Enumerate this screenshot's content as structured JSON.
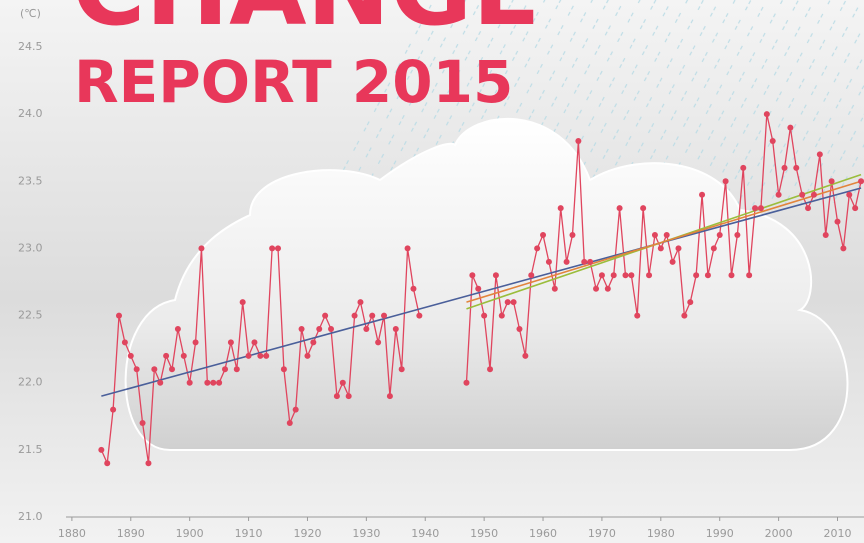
{
  "chart_data": {
    "type": "line",
    "title": "CHANGE",
    "subtitle": "REPORT 2015",
    "y_label": "(℃)",
    "xlim": [
      1879,
      2014.5
    ],
    "ylim": [
      21.0,
      24.5
    ],
    "xticks": [
      1880,
      1890,
      1900,
      1910,
      1920,
      1930,
      1940,
      1950,
      1960,
      1970,
      1980,
      1990,
      2000,
      2010
    ],
    "yticks": [
      {
        "value": 21.0,
        "label": "21.0"
      },
      {
        "value": 21.5,
        "label": "21.5"
      },
      {
        "value": 22.0,
        "label": "22.0"
      },
      {
        "value": 22.5,
        "label": "22.5"
      },
      {
        "value": 23.0,
        "label": "23.0"
      },
      {
        "value": 23.5,
        "label": "23.5"
      },
      {
        "value": 24.0,
        "label": "24.0"
      },
      {
        "value": 24.5,
        "label": "24.5"
      }
    ],
    "x": [
      1885,
      1886,
      1887,
      1888,
      1889,
      1890,
      1891,
      1892,
      1893,
      1894,
      1895,
      1896,
      1897,
      1898,
      1899,
      1900,
      1901,
      1902,
      1903,
      1904,
      1905,
      1906,
      1907,
      1908,
      1909,
      1910,
      1911,
      1912,
      1913,
      1914,
      1915,
      1916,
      1917,
      1918,
      1919,
      1920,
      1921,
      1922,
      1923,
      1924,
      1925,
      1926,
      1927,
      1928,
      1929,
      1930,
      1931,
      1932,
      1933,
      1934,
      1935,
      1936,
      1937,
      1938,
      1939,
      1940,
      1941,
      1942,
      1943,
      1944,
      1945,
      1946,
      1947,
      1948,
      1949,
      1950,
      1951,
      1952,
      1953,
      1954,
      1955,
      1956,
      1957,
      1958,
      1959,
      1960,
      1961,
      1962,
      1963,
      1964,
      1965,
      1966,
      1967,
      1968,
      1969,
      1970,
      1971,
      1972,
      1973,
      1974,
      1975,
      1976,
      1977,
      1978,
      1979,
      1980,
      1981,
      1982,
      1983,
      1984,
      1985,
      1986,
      1987,
      1988,
      1989,
      1990,
      1991,
      1992,
      1993,
      1994,
      1995,
      1996,
      1997,
      1998,
      1999,
      2000,
      2001,
      2002,
      2003,
      2004,
      2005,
      2006,
      2007,
      2008,
      2009,
      2010,
      2011,
      2012,
      2013,
      2014
    ],
    "series": [
      {
        "color": "#e0455e",
        "values": [
          21.5,
          21.4,
          21.8,
          22.5,
          22.3,
          22.2,
          22.1,
          21.7,
          21.4,
          22.1,
          22.0,
          22.2,
          22.1,
          22.4,
          22.2,
          22.0,
          22.3,
          23.0,
          22.0,
          22.0,
          22.0,
          22.1,
          22.3,
          22.1,
          22.6,
          22.2,
          22.3,
          22.2,
          22.2,
          23.0,
          23.0,
          22.1,
          21.7,
          21.8,
          22.4,
          22.2,
          22.3,
          22.4,
          22.5,
          22.4,
          21.9,
          22.0,
          21.9,
          22.5,
          22.6,
          22.4,
          22.5,
          22.3,
          22.5,
          21.9,
          22.4,
          22.1,
          23.0,
          22.7,
          22.5,
          null,
          null,
          null,
          null,
          null,
          null,
          null,
          22.0,
          22.8,
          22.7,
          22.5,
          22.1,
          22.8,
          22.5,
          22.6,
          22.6,
          22.4,
          22.2,
          22.8,
          23.0,
          23.1,
          22.9,
          22.7,
          23.3,
          22.9,
          23.1,
          23.8,
          22.9,
          22.9,
          22.7,
          22.8,
          22.7,
          22.8,
          23.3,
          22.8,
          22.8,
          22.5,
          23.3,
          22.8,
          23.1,
          23.0,
          23.1,
          22.9,
          23.0,
          22.5,
          22.6,
          22.8,
          23.4,
          22.8,
          23.0,
          23.1,
          23.5,
          22.8,
          23.1,
          23.6,
          22.8,
          23.3,
          23.3,
          24.0,
          23.8,
          23.4,
          23.6,
          23.9,
          23.6,
          23.4,
          23.3,
          23.4,
          23.7,
          23.1,
          23.5,
          23.2,
          23.0,
          23.4,
          23.3,
          23.5
        ]
      }
    ],
    "trends": [
      {
        "color": "#4a5f9a",
        "x": [
          1885,
          2014
        ],
        "values": [
          21.9,
          23.45
        ]
      },
      {
        "color": "#9bbd3c",
        "x": [
          1947,
          2014
        ],
        "values": [
          22.55,
          23.55
        ]
      },
      {
        "color": "#e2843c",
        "x": [
          1947,
          2014
        ],
        "values": [
          22.6,
          23.5
        ]
      }
    ]
  }
}
